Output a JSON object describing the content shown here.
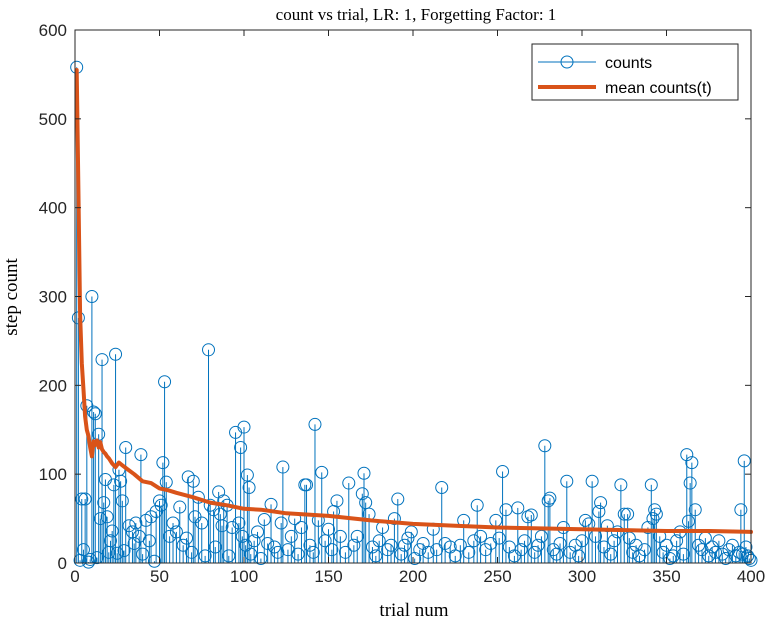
{
  "chart_data": {
    "type": "line",
    "title": "count vs trial, LR: 1, Forgetting Factor: 1",
    "xlabel": "trial num",
    "ylabel": "step count",
    "xlim": [
      0,
      400
    ],
    "ylim": [
      0,
      600
    ],
    "xticks": [
      0,
      50,
      100,
      150,
      200,
      250,
      300,
      350,
      400
    ],
    "yticks": [
      0,
      100,
      200,
      300,
      400,
      500,
      600
    ],
    "box": true,
    "grid": false,
    "legend_position": "top-right",
    "series": [
      {
        "name": "counts",
        "style": "stem",
        "marker": "open-circle",
        "color": "#0072BD",
        "points": [
          [
            1,
            558
          ],
          [
            2,
            276
          ],
          [
            3,
            3
          ],
          [
            4,
            72
          ],
          [
            5,
            15
          ],
          [
            6,
            72
          ],
          [
            7,
            177
          ],
          [
            8,
            1
          ],
          [
            9,
            4
          ],
          [
            10,
            300
          ],
          [
            11,
            170
          ],
          [
            12,
            168
          ],
          [
            13,
            6
          ],
          [
            14,
            145
          ],
          [
            15,
            50
          ],
          [
            16,
            229
          ],
          [
            17,
            68
          ],
          [
            18,
            94
          ],
          [
            19,
            52
          ],
          [
            20,
            12
          ],
          [
            21,
            25
          ],
          [
            22,
            36
          ],
          [
            23,
            88
          ],
          [
            24,
            235
          ],
          [
            25,
            11
          ],
          [
            26,
            105
          ],
          [
            27,
            92
          ],
          [
            28,
            70
          ],
          [
            29,
            14
          ],
          [
            30,
            130
          ],
          [
            32,
            42
          ],
          [
            34,
            35
          ],
          [
            35,
            22
          ],
          [
            36,
            45
          ],
          [
            38,
            30
          ],
          [
            39,
            122
          ],
          [
            40,
            10
          ],
          [
            42,
            48
          ],
          [
            44,
            25
          ],
          [
            45,
            52
          ],
          [
            47,
            2
          ],
          [
            48,
            58
          ],
          [
            50,
            70
          ],
          [
            51,
            65
          ],
          [
            52,
            113
          ],
          [
            53,
            204
          ],
          [
            54,
            91
          ],
          [
            56,
            30
          ],
          [
            58,
            45
          ],
          [
            60,
            35
          ],
          [
            62,
            63
          ],
          [
            64,
            20
          ],
          [
            66,
            28
          ],
          [
            67,
            97
          ],
          [
            69,
            12
          ],
          [
            70,
            92
          ],
          [
            71,
            52
          ],
          [
            73,
            74
          ],
          [
            75,
            45
          ],
          [
            77,
            8
          ],
          [
            79,
            240
          ],
          [
            80,
            65
          ],
          [
            82,
            60
          ],
          [
            83,
            18
          ],
          [
            85,
            80
          ],
          [
            86,
            55
          ],
          [
            87,
            42
          ],
          [
            88,
            70
          ],
          [
            90,
            65
          ],
          [
            91,
            8
          ],
          [
            93,
            40
          ],
          [
            95,
            147
          ],
          [
            97,
            45
          ],
          [
            98,
            130
          ],
          [
            99,
            30
          ],
          [
            100,
            153
          ],
          [
            101,
            20
          ],
          [
            102,
            99
          ],
          [
            103,
            85
          ],
          [
            104,
            10
          ],
          [
            106,
            25
          ],
          [
            108,
            35
          ],
          [
            110,
            5
          ],
          [
            112,
            49
          ],
          [
            114,
            22
          ],
          [
            116,
            66
          ],
          [
            118,
            18
          ],
          [
            120,
            12
          ],
          [
            122,
            45
          ],
          [
            123,
            108
          ],
          [
            126,
            15
          ],
          [
            128,
            30
          ],
          [
            130,
            50
          ],
          [
            132,
            10
          ],
          [
            134,
            40
          ],
          [
            136,
            88
          ],
          [
            137,
            88
          ],
          [
            139,
            20
          ],
          [
            141,
            12
          ],
          [
            142,
            156
          ],
          [
            144,
            48
          ],
          [
            146,
            102
          ],
          [
            148,
            25
          ],
          [
            150,
            38
          ],
          [
            152,
            15
          ],
          [
            153,
            58
          ],
          [
            155,
            70
          ],
          [
            157,
            30
          ],
          [
            160,
            12
          ],
          [
            162,
            90
          ],
          [
            165,
            20
          ],
          [
            167,
            30
          ],
          [
            170,
            78
          ],
          [
            171,
            101
          ],
          [
            172,
            68
          ],
          [
            174,
            55
          ],
          [
            176,
            18
          ],
          [
            178,
            8
          ],
          [
            180,
            25
          ],
          [
            182,
            40
          ],
          [
            185,
            15
          ],
          [
            187,
            20
          ],
          [
            189,
            50
          ],
          [
            191,
            72
          ],
          [
            193,
            10
          ],
          [
            195,
            20
          ],
          [
            197,
            28
          ],
          [
            199,
            35
          ],
          [
            201,
            5
          ],
          [
            204,
            15
          ],
          [
            206,
            22
          ],
          [
            209,
            12
          ],
          [
            212,
            38
          ],
          [
            214,
            15
          ],
          [
            217,
            85
          ],
          [
            219,
            22
          ],
          [
            222,
            18
          ],
          [
            225,
            8
          ],
          [
            228,
            20
          ],
          [
            230,
            48
          ],
          [
            233,
            12
          ],
          [
            236,
            25
          ],
          [
            238,
            65
          ],
          [
            240,
            30
          ],
          [
            243,
            15
          ],
          [
            246,
            22
          ],
          [
            249,
            48
          ],
          [
            251,
            28
          ],
          [
            253,
            103
          ],
          [
            255,
            60
          ],
          [
            257,
            18
          ],
          [
            260,
            8
          ],
          [
            262,
            62
          ],
          [
            264,
            15
          ],
          [
            266,
            25
          ],
          [
            268,
            52
          ],
          [
            270,
            54
          ],
          [
            272,
            12
          ],
          [
            274,
            20
          ],
          [
            276,
            30
          ],
          [
            278,
            132
          ],
          [
            280,
            70
          ],
          [
            281,
            73
          ],
          [
            283,
            15
          ],
          [
            285,
            10
          ],
          [
            287,
            22
          ],
          [
            289,
            40
          ],
          [
            291,
            92
          ],
          [
            293,
            12
          ],
          [
            296,
            20
          ],
          [
            298,
            8
          ],
          [
            300,
            25
          ],
          [
            302,
            48
          ],
          [
            304,
            44
          ],
          [
            306,
            92
          ],
          [
            308,
            30
          ],
          [
            310,
            58
          ],
          [
            311,
            68
          ],
          [
            313,
            18
          ],
          [
            315,
            42
          ],
          [
            317,
            10
          ],
          [
            319,
            25
          ],
          [
            321,
            35
          ],
          [
            323,
            88
          ],
          [
            325,
            55
          ],
          [
            327,
            55
          ],
          [
            328,
            28
          ],
          [
            330,
            12
          ],
          [
            332,
            20
          ],
          [
            334,
            8
          ],
          [
            337,
            15
          ],
          [
            339,
            40
          ],
          [
            341,
            88
          ],
          [
            342,
            50
          ],
          [
            343,
            60
          ],
          [
            344,
            55
          ],
          [
            346,
            30
          ],
          [
            348,
            12
          ],
          [
            350,
            20
          ],
          [
            352,
            5
          ],
          [
            354,
            8
          ],
          [
            356,
            25
          ],
          [
            358,
            35
          ],
          [
            360,
            10
          ],
          [
            362,
            122
          ],
          [
            363,
            47
          ],
          [
            364,
            90
          ],
          [
            365,
            113
          ],
          [
            367,
            60
          ],
          [
            369,
            20
          ],
          [
            371,
            15
          ],
          [
            373,
            28
          ],
          [
            375,
            8
          ],
          [
            377,
            18
          ],
          [
            379,
            12
          ],
          [
            381,
            25
          ],
          [
            383,
            10
          ],
          [
            385,
            5
          ],
          [
            387,
            15
          ],
          [
            389,
            20
          ],
          [
            391,
            8
          ],
          [
            393,
            12
          ],
          [
            394,
            60
          ],
          [
            395,
            10
          ],
          [
            396,
            115
          ],
          [
            397,
            18
          ],
          [
            398,
            8
          ],
          [
            399,
            5
          ],
          [
            400,
            3
          ]
        ]
      },
      {
        "name": "mean counts(t)",
        "style": "line",
        "color": "#D95319",
        "points": [
          [
            1,
            555
          ],
          [
            2,
            420
          ],
          [
            3,
            280
          ],
          [
            4,
            225
          ],
          [
            5,
            195
          ],
          [
            6,
            165
          ],
          [
            7,
            150
          ],
          [
            8,
            143
          ],
          [
            9,
            130
          ],
          [
            10,
            120
          ],
          [
            11,
            137
          ],
          [
            12,
            133
          ],
          [
            13,
            138
          ],
          [
            14,
            130
          ],
          [
            15,
            136
          ],
          [
            16,
            128
          ],
          [
            17,
            125
          ],
          [
            18,
            123
          ],
          [
            19,
            120
          ],
          [
            20,
            118
          ],
          [
            22,
            112
          ],
          [
            24,
            108
          ],
          [
            26,
            113
          ],
          [
            28,
            110
          ],
          [
            30,
            107
          ],
          [
            35,
            100
          ],
          [
            40,
            92
          ],
          [
            45,
            90
          ],
          [
            50,
            84
          ],
          [
            55,
            82
          ],
          [
            60,
            79
          ],
          [
            70,
            74
          ],
          [
            80,
            68
          ],
          [
            90,
            65
          ],
          [
            100,
            61
          ],
          [
            110,
            60
          ],
          [
            125,
            56
          ],
          [
            150,
            53
          ],
          [
            175,
            48
          ],
          [
            200,
            44
          ],
          [
            225,
            42
          ],
          [
            250,
            40
          ],
          [
            275,
            39
          ],
          [
            300,
            38
          ],
          [
            325,
            37
          ],
          [
            350,
            36
          ],
          [
            375,
            36
          ],
          [
            400,
            35
          ]
        ]
      }
    ]
  }
}
